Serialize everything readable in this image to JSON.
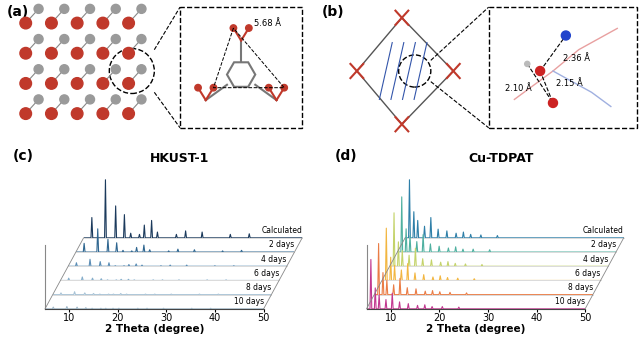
{
  "panels": [
    {
      "label": "(a)",
      "annotations": [
        "5.68 Å"
      ]
    },
    {
      "label": "(b)",
      "annotations": [
        "2.36 Å",
        "2.10 Å",
        "2.15 Å"
      ]
    }
  ],
  "chart_data": [
    {
      "type": "line",
      "title": "HKUST-1",
      "annotations": [
        "(c)"
      ],
      "x_label": "2 Theta (degree)",
      "x": [
        6.7,
        9.5,
        11.6,
        13.4,
        14.7,
        16.5,
        17.5,
        19.0,
        20.2,
        24.1,
        26.0,
        29.4,
        35.2,
        39.1
      ],
      "series": [
        {
          "name": "Calculated",
          "color": "#1b3a5c",
          "values": [
            35,
            100,
            55,
            40,
            8,
            6,
            22,
            30,
            10,
            6,
            12,
            10,
            6,
            7
          ]
        },
        {
          "name": "2 days",
          "color": "#2f6690",
          "values": [
            15,
            40,
            22,
            16,
            3,
            2,
            8,
            12,
            4,
            2,
            5,
            4,
            2,
            3
          ]
        },
        {
          "name": "4 days",
          "color": "#5b8db5",
          "values": [
            6,
            12,
            8,
            6,
            1,
            1,
            3,
            4,
            2,
            1,
            2,
            2,
            1,
            1
          ]
        },
        {
          "name": "6 days",
          "color": "#86aecb",
          "values": [
            4,
            6,
            4,
            3,
            1,
            1,
            2,
            2,
            1,
            1,
            1,
            1,
            1,
            1
          ]
        },
        {
          "name": "8 days",
          "color": "#a8c3d6",
          "values": [
            3,
            5,
            3,
            2,
            1,
            1,
            1,
            2,
            1,
            1,
            1,
            1,
            1,
            1
          ]
        },
        {
          "name": "10 days",
          "color": "#9fb8c9",
          "values": [
            3,
            4,
            3,
            2,
            1,
            1,
            1,
            1,
            1,
            1,
            1,
            1,
            1,
            1
          ]
        }
      ],
      "xlim": [
        5,
        50
      ],
      "xticks": [
        10,
        20,
        30,
        40,
        50
      ],
      "ylim": [
        0,
        110
      ],
      "tick_labels": "x"
    },
    {
      "type": "line",
      "title": "Cu-TDPAT",
      "annotations": [
        "(d)"
      ],
      "x_label": "2 Theta (degree)",
      "x": [
        5.9,
        6.8,
        7.6,
        9.0,
        10.3,
        11.8,
        13.6,
        15.5,
        17.0,
        18.5,
        20.6,
        24.0
      ],
      "series": [
        {
          "name": "Calculated",
          "color": "#2e7fa8",
          "values": [
            100,
            45,
            30,
            20,
            35,
            15,
            12,
            8,
            10,
            6,
            5,
            4
          ]
        },
        {
          "name": "2 days",
          "color": "#4fb0a0",
          "values": [
            95,
            40,
            28,
            18,
            30,
            14,
            10,
            7,
            9,
            5,
            5,
            4
          ]
        },
        {
          "name": "4 days",
          "color": "#c4d36a",
          "values": [
            92,
            42,
            27,
            19,
            31,
            13,
            11,
            7,
            8,
            5,
            4,
            3
          ]
        },
        {
          "name": "6 days",
          "color": "#f2b640",
          "values": [
            90,
            40,
            26,
            18,
            29,
            13,
            10,
            6,
            8,
            5,
            4,
            3
          ]
        },
        {
          "name": "8 days",
          "color": "#ea7c45",
          "values": [
            88,
            38,
            25,
            17,
            28,
            12,
            10,
            6,
            7,
            5,
            4,
            3
          ]
        },
        {
          "name": "10 days",
          "color": "#c2378f",
          "values": [
            85,
            36,
            24,
            16,
            27,
            12,
            9,
            6,
            7,
            4,
            4,
            3
          ]
        }
      ],
      "xlim": [
        5,
        50
      ],
      "xticks": [
        10,
        20,
        30,
        40,
        50
      ],
      "ylim": [
        0,
        110
      ],
      "tick_labels": "x"
    }
  ]
}
